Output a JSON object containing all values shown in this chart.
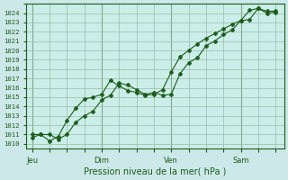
{
  "xlabel": "Pression niveau de la mer( hPa )",
  "background_color": "#cce8e8",
  "plot_bg": "#cceee8",
  "line_color": "#1a5c1a",
  "grid_major_color": "#99bbaa",
  "grid_minor_color": "#b0d8cc",
  "ylim_low": 1009.5,
  "ylim_high": 1025.0,
  "yticks": [
    1010,
    1011,
    1012,
    1013,
    1014,
    1015,
    1016,
    1017,
    1018,
    1019,
    1020,
    1021,
    1022,
    1023,
    1024
  ],
  "xtick_labels": [
    "Jeu",
    "Dim",
    "Ven",
    "Sam"
  ],
  "xtick_positions": [
    0,
    24,
    48,
    72
  ],
  "xlim_low": -2,
  "xlim_high": 87,
  "vline_positions": [
    0,
    24,
    48,
    72
  ],
  "series1_x": [
    0,
    3,
    6,
    9,
    12,
    15,
    18,
    21,
    24,
    27,
    30,
    33,
    36,
    39,
    42,
    45,
    48,
    51,
    54,
    57,
    60,
    63,
    66,
    69,
    72,
    75,
    78,
    81,
    84
  ],
  "series1_y": [
    1010.7,
    1011.0,
    1011.0,
    1010.5,
    1011.0,
    1012.3,
    1013.0,
    1013.5,
    1014.7,
    1015.2,
    1016.5,
    1016.3,
    1015.8,
    1015.3,
    1015.5,
    1015.2,
    1015.3,
    1017.5,
    1018.7,
    1019.2,
    1020.5,
    1021.0,
    1021.7,
    1022.2,
    1023.2,
    1024.3,
    1024.5,
    1024.0,
    1024.1
  ],
  "series2_x": [
    0,
    3,
    6,
    9,
    12,
    15,
    18,
    21,
    24,
    27,
    30,
    33,
    36,
    39,
    42,
    45,
    48,
    51,
    54,
    57,
    60,
    63,
    66,
    69,
    72,
    75,
    78,
    81,
    84
  ],
  "series2_y": [
    1011.0,
    1011.0,
    1010.3,
    1010.8,
    1012.5,
    1013.8,
    1014.8,
    1015.0,
    1015.3,
    1016.8,
    1016.2,
    1015.7,
    1015.5,
    1015.2,
    1015.3,
    1015.8,
    1017.7,
    1019.3,
    1020.0,
    1020.7,
    1021.3,
    1021.8,
    1022.3,
    1022.8,
    1023.2,
    1023.3,
    1024.5,
    1024.2,
    1024.2
  ]
}
